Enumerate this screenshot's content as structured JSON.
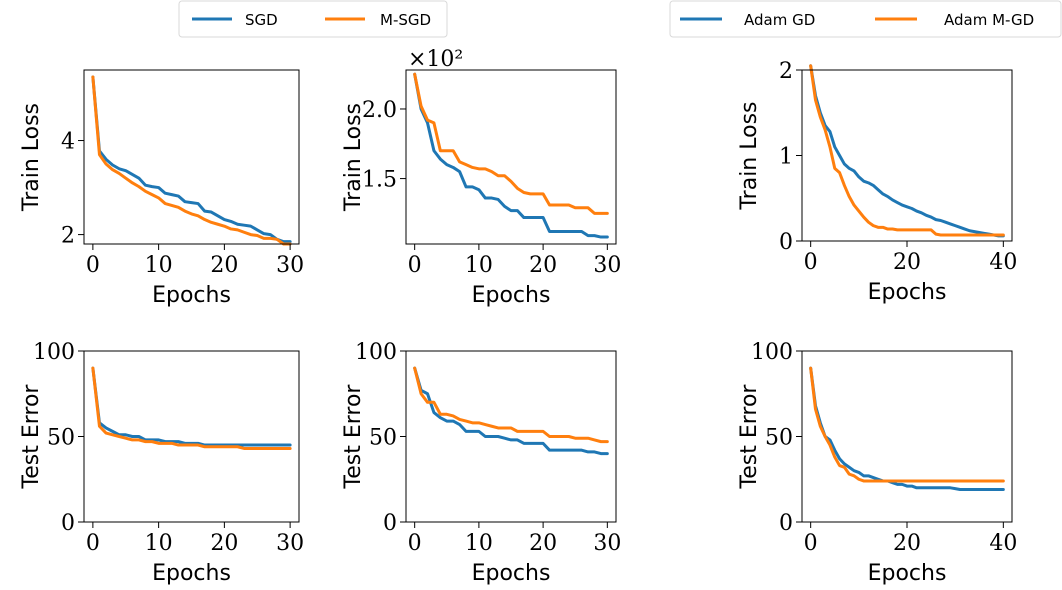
{
  "legends": [
    {
      "items": [
        {
          "label": "SGD",
          "color": "#1f77b4"
        },
        {
          "label": "M-SGD",
          "color": "#ff7f0e"
        }
      ]
    },
    {
      "items": [
        {
          "label": "Adam GD",
          "color": "#1f77b4"
        },
        {
          "label": "Adam M-GD",
          "color": "#ff7f0e"
        }
      ]
    }
  ],
  "chart_data": [
    {
      "type": "line",
      "xlabel": "Epochs",
      "ylabel": "Train Loss",
      "xlim": [
        0,
        30
      ],
      "ylim": [
        1.8,
        5.5
      ],
      "xticks": [
        0,
        10,
        20,
        30
      ],
      "yticks": [
        2,
        4
      ],
      "series": [
        {
          "name": "SGD",
          "color": "#1f77b4",
          "x": [
            0,
            1,
            2,
            3,
            4,
            5,
            6,
            7,
            8,
            9,
            10,
            11,
            12,
            13,
            14,
            15,
            16,
            17,
            18,
            19,
            20,
            21,
            22,
            23,
            24,
            25,
            26,
            27,
            28,
            29,
            30
          ],
          "y": [
            5.35,
            3.78,
            3.6,
            3.48,
            3.4,
            3.36,
            3.28,
            3.2,
            3.05,
            3.02,
            3.0,
            2.88,
            2.85,
            2.82,
            2.7,
            2.68,
            2.66,
            2.5,
            2.48,
            2.4,
            2.32,
            2.28,
            2.22,
            2.2,
            2.18,
            2.1,
            2.02,
            2.0,
            1.9,
            1.85,
            1.85
          ]
        },
        {
          "name": "M-SGD",
          "color": "#ff7f0e",
          "x": [
            0,
            1,
            2,
            3,
            4,
            5,
            6,
            7,
            8,
            9,
            10,
            11,
            12,
            13,
            14,
            15,
            16,
            17,
            18,
            19,
            20,
            21,
            22,
            23,
            24,
            25,
            26,
            27,
            28,
            29,
            30
          ],
          "y": [
            5.35,
            3.7,
            3.5,
            3.38,
            3.3,
            3.2,
            3.1,
            3.02,
            2.92,
            2.85,
            2.78,
            2.66,
            2.62,
            2.58,
            2.5,
            2.44,
            2.4,
            2.32,
            2.26,
            2.22,
            2.18,
            2.12,
            2.1,
            2.05,
            2.0,
            1.98,
            1.92,
            1.92,
            1.9,
            1.8,
            1.8
          ]
        }
      ]
    },
    {
      "type": "line",
      "xlabel": "Epochs",
      "ylabel": "Train Loss",
      "multiplier": "×10²",
      "xlim": [
        0,
        30
      ],
      "ylim": [
        1.03,
        2.28
      ],
      "xticks": [
        0,
        10,
        20,
        30
      ],
      "yticks": [
        1.5,
        2.0
      ],
      "ytick_labels": [
        "1.5",
        "2.0"
      ],
      "series": [
        {
          "name": "SGD",
          "color": "#1f77b4",
          "x": [
            0,
            1,
            2,
            3,
            4,
            5,
            6,
            7,
            8,
            9,
            10,
            11,
            12,
            13,
            14,
            15,
            16,
            17,
            18,
            19,
            20,
            21,
            22,
            23,
            24,
            25,
            26,
            27,
            28,
            29,
            30
          ],
          "y": [
            2.25,
            2.0,
            1.9,
            1.7,
            1.64,
            1.6,
            1.58,
            1.55,
            1.44,
            1.44,
            1.42,
            1.36,
            1.36,
            1.35,
            1.3,
            1.27,
            1.27,
            1.22,
            1.22,
            1.22,
            1.22,
            1.12,
            1.12,
            1.12,
            1.12,
            1.12,
            1.12,
            1.09,
            1.09,
            1.08,
            1.08
          ]
        },
        {
          "name": "M-SGD",
          "color": "#ff7f0e",
          "x": [
            0,
            1,
            2,
            3,
            4,
            5,
            6,
            7,
            8,
            9,
            10,
            11,
            12,
            13,
            14,
            15,
            16,
            17,
            18,
            19,
            20,
            21,
            22,
            23,
            24,
            25,
            26,
            27,
            28,
            29,
            30
          ],
          "y": [
            2.25,
            2.02,
            1.92,
            1.9,
            1.7,
            1.7,
            1.7,
            1.62,
            1.6,
            1.58,
            1.57,
            1.57,
            1.55,
            1.52,
            1.52,
            1.48,
            1.43,
            1.4,
            1.39,
            1.39,
            1.39,
            1.31,
            1.31,
            1.31,
            1.31,
            1.29,
            1.29,
            1.29,
            1.25,
            1.25,
            1.25
          ]
        }
      ]
    },
    {
      "type": "line",
      "xlabel": "Epochs",
      "ylabel": "Train Loss",
      "xlim": [
        0,
        40
      ],
      "ylim": [
        0,
        2
      ],
      "xticks": [
        0,
        20,
        40
      ],
      "yticks": [
        0,
        1,
        2
      ],
      "series": [
        {
          "name": "Adam GD",
          "color": "#1f77b4",
          "x": [
            0,
            1,
            2,
            3,
            4,
            5,
            6,
            7,
            8,
            9,
            10,
            11,
            12,
            13,
            14,
            15,
            16,
            17,
            18,
            19,
            20,
            21,
            22,
            23,
            24,
            25,
            26,
            27,
            28,
            29,
            30,
            31,
            32,
            33,
            34,
            35,
            36,
            37,
            38,
            39,
            40
          ],
          "y": [
            2.05,
            1.7,
            1.5,
            1.35,
            1.28,
            1.1,
            1.0,
            0.9,
            0.85,
            0.82,
            0.75,
            0.7,
            0.68,
            0.65,
            0.6,
            0.55,
            0.52,
            0.48,
            0.45,
            0.42,
            0.4,
            0.38,
            0.35,
            0.33,
            0.3,
            0.28,
            0.25,
            0.24,
            0.22,
            0.2,
            0.18,
            0.16,
            0.14,
            0.12,
            0.11,
            0.1,
            0.09,
            0.08,
            0.07,
            0.06,
            0.06
          ]
        },
        {
          "name": "Adam M-GD",
          "color": "#ff7f0e",
          "x": [
            0,
            1,
            2,
            3,
            4,
            5,
            6,
            7,
            8,
            9,
            10,
            11,
            12,
            13,
            14,
            15,
            16,
            17,
            18,
            19,
            20,
            21,
            22,
            23,
            24,
            25,
            26,
            27,
            28,
            29,
            30,
            31,
            32,
            33,
            34,
            35,
            36,
            37,
            38,
            39,
            40
          ],
          "y": [
            2.05,
            1.65,
            1.45,
            1.3,
            1.1,
            0.85,
            0.8,
            0.65,
            0.52,
            0.42,
            0.35,
            0.28,
            0.22,
            0.18,
            0.16,
            0.16,
            0.14,
            0.14,
            0.13,
            0.13,
            0.13,
            0.13,
            0.13,
            0.13,
            0.13,
            0.13,
            0.08,
            0.07,
            0.07,
            0.07,
            0.07,
            0.07,
            0.07,
            0.07,
            0.07,
            0.07,
            0.07,
            0.07,
            0.07,
            0.07,
            0.07
          ]
        }
      ]
    },
    {
      "type": "line",
      "xlabel": "Epochs",
      "ylabel": "Test Error",
      "xlim": [
        0,
        30
      ],
      "ylim": [
        0,
        100
      ],
      "xticks": [
        0,
        10,
        20,
        30
      ],
      "yticks": [
        0,
        50,
        100
      ],
      "series": [
        {
          "name": "SGD",
          "color": "#1f77b4",
          "x": [
            0,
            1,
            2,
            3,
            4,
            5,
            6,
            7,
            8,
            9,
            10,
            11,
            12,
            13,
            14,
            15,
            16,
            17,
            18,
            19,
            20,
            21,
            22,
            23,
            24,
            25,
            26,
            27,
            28,
            29,
            30
          ],
          "y": [
            90,
            58,
            55,
            53,
            51,
            51,
            50,
            50,
            48,
            48,
            48,
            47,
            47,
            47,
            46,
            46,
            46,
            45,
            45,
            45,
            45,
            45,
            45,
            45,
            45,
            45,
            45,
            45,
            45,
            45,
            45
          ]
        },
        {
          "name": "M-SGD",
          "color": "#ff7f0e",
          "x": [
            0,
            1,
            2,
            3,
            4,
            5,
            6,
            7,
            8,
            9,
            10,
            11,
            12,
            13,
            14,
            15,
            16,
            17,
            18,
            19,
            20,
            21,
            22,
            23,
            24,
            25,
            26,
            27,
            28,
            29,
            30
          ],
          "y": [
            90,
            56,
            52,
            51,
            50,
            49,
            48,
            48,
            47,
            47,
            46,
            46,
            46,
            45,
            45,
            45,
            45,
            44,
            44,
            44,
            44,
            44,
            44,
            43,
            43,
            43,
            43,
            43,
            43,
            43,
            43
          ]
        }
      ]
    },
    {
      "type": "line",
      "xlabel": "Epochs",
      "ylabel": "Test Error",
      "xlim": [
        0,
        30
      ],
      "ylim": [
        0,
        100
      ],
      "xticks": [
        0,
        10,
        20,
        30
      ],
      "yticks": [
        0,
        50,
        100
      ],
      "series": [
        {
          "name": "SGD",
          "color": "#1f77b4",
          "x": [
            0,
            1,
            2,
            3,
            4,
            5,
            6,
            7,
            8,
            9,
            10,
            11,
            12,
            13,
            14,
            15,
            16,
            17,
            18,
            19,
            20,
            21,
            22,
            23,
            24,
            25,
            26,
            27,
            28,
            29,
            30
          ],
          "y": [
            90,
            77,
            75,
            64,
            61,
            59,
            59,
            57,
            53,
            53,
            53,
            50,
            50,
            50,
            49,
            48,
            48,
            46,
            46,
            46,
            46,
            42,
            42,
            42,
            42,
            42,
            42,
            41,
            41,
            40,
            40
          ]
        },
        {
          "name": "M-SGD",
          "color": "#ff7f0e",
          "x": [
            0,
            1,
            2,
            3,
            4,
            5,
            6,
            7,
            8,
            9,
            10,
            11,
            12,
            13,
            14,
            15,
            16,
            17,
            18,
            19,
            20,
            21,
            22,
            23,
            24,
            25,
            26,
            27,
            28,
            29,
            30
          ],
          "y": [
            90,
            75,
            70,
            70,
            63,
            63,
            62,
            60,
            59,
            58,
            58,
            57,
            56,
            55,
            55,
            55,
            53,
            53,
            53,
            53,
            53,
            50,
            50,
            50,
            50,
            49,
            49,
            49,
            48,
            47,
            47
          ]
        }
      ]
    },
    {
      "type": "line",
      "xlabel": "Epochs",
      "ylabel": "Test Error",
      "xlim": [
        0,
        40
      ],
      "ylim": [
        0,
        100
      ],
      "xticks": [
        0,
        20,
        40
      ],
      "yticks": [
        0,
        50,
        100
      ],
      "series": [
        {
          "name": "Adam GD",
          "color": "#1f77b4",
          "x": [
            0,
            1,
            2,
            3,
            4,
            5,
            6,
            7,
            8,
            9,
            10,
            11,
            12,
            13,
            14,
            15,
            16,
            17,
            18,
            19,
            20,
            21,
            22,
            23,
            24,
            25,
            26,
            27,
            28,
            29,
            30,
            31,
            32,
            33,
            34,
            35,
            36,
            37,
            38,
            39,
            40
          ],
          "y": [
            90,
            68,
            58,
            50,
            48,
            42,
            37,
            34,
            32,
            30,
            29,
            27,
            27,
            26,
            25,
            24,
            24,
            23,
            22,
            22,
            21,
            21,
            20,
            20,
            20,
            20,
            20,
            20,
            20,
            20,
            19.5,
            19,
            19,
            19,
            19,
            19,
            19,
            19,
            19,
            19,
            19
          ]
        },
        {
          "name": "Adam M-GD",
          "color": "#ff7f0e",
          "x": [
            0,
            1,
            2,
            3,
            4,
            5,
            6,
            7,
            8,
            9,
            10,
            11,
            12,
            13,
            14,
            15,
            16,
            17,
            18,
            19,
            20,
            21,
            22,
            23,
            24,
            25,
            26,
            27,
            28,
            29,
            30,
            31,
            32,
            33,
            34,
            35,
            36,
            37,
            38,
            39,
            40
          ],
          "y": [
            90,
            66,
            56,
            50,
            45,
            38,
            33,
            32,
            28,
            27,
            25,
            24,
            24,
            24,
            24,
            24,
            24,
            24,
            24,
            24,
            24,
            24,
            24,
            24,
            24,
            24,
            24,
            24,
            24,
            24,
            24,
            24,
            24,
            24,
            24,
            24,
            24,
            24,
            24,
            24,
            24
          ]
        }
      ]
    }
  ]
}
